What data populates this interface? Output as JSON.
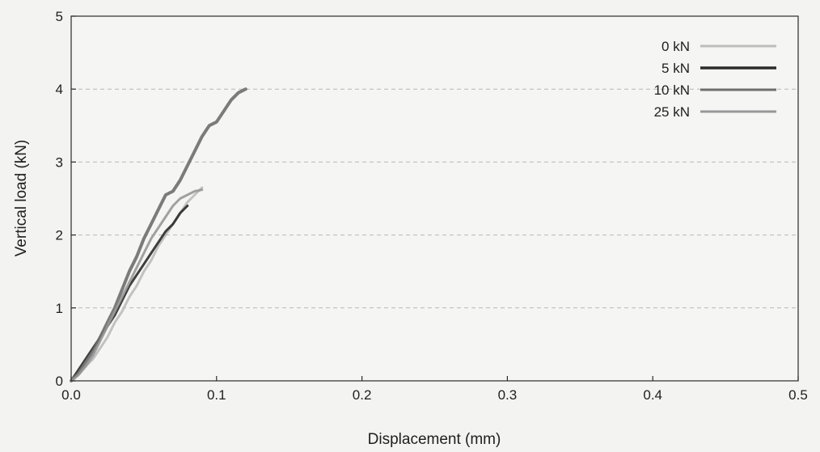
{
  "chart_data": {
    "type": "line",
    "title": "",
    "xlabel": "Displacement (mm)",
    "ylabel": "Vertical load (kN)",
    "xlim": [
      0,
      0.5
    ],
    "ylim": [
      0,
      5
    ],
    "x_ticks": [
      0.0,
      0.1,
      0.2,
      0.3,
      0.4,
      0.5
    ],
    "x_tick_labels": [
      "0.0",
      "0.1",
      "0.2",
      "0.3",
      "0.4",
      "0.5"
    ],
    "y_ticks": [
      0,
      1,
      2,
      3,
      4,
      5
    ],
    "y_tick_labels": [
      "0",
      "1",
      "2",
      "3",
      "4",
      "5"
    ],
    "grid": "horizontal dashed",
    "legend_position": "top-right",
    "series": [
      {
        "name": "0 kN",
        "color": "#bdbdbd",
        "x": [
          0.0,
          0.005,
          0.01,
          0.015,
          0.02,
          0.025,
          0.03,
          0.035,
          0.04,
          0.045,
          0.05,
          0.055,
          0.06,
          0.065,
          0.07,
          0.075,
          0.08,
          0.085,
          0.09
        ],
        "y": [
          0.0,
          0.1,
          0.2,
          0.3,
          0.45,
          0.6,
          0.8,
          0.95,
          1.15,
          1.3,
          1.5,
          1.65,
          1.85,
          2.0,
          2.15,
          2.3,
          2.45,
          2.55,
          2.65
        ]
      },
      {
        "name": "5 kN",
        "color": "#2b2b2b",
        "x": [
          0.0,
          0.005,
          0.01,
          0.015,
          0.02,
          0.025,
          0.03,
          0.035,
          0.04,
          0.045,
          0.05,
          0.055,
          0.06,
          0.065,
          0.07,
          0.075,
          0.08
        ],
        "y": [
          0.0,
          0.15,
          0.3,
          0.45,
          0.6,
          0.75,
          0.9,
          1.1,
          1.3,
          1.45,
          1.6,
          1.75,
          1.9,
          2.05,
          2.15,
          2.3,
          2.4
        ]
      },
      {
        "name": "10 kN",
        "color": "#6e6e6e",
        "x": [
          0.0,
          0.005,
          0.01,
          0.015,
          0.02,
          0.025,
          0.03,
          0.035,
          0.04,
          0.045,
          0.05,
          0.055,
          0.06,
          0.065,
          0.07,
          0.075,
          0.08,
          0.085,
          0.09,
          0.095,
          0.1,
          0.105,
          0.11,
          0.115,
          0.12
        ],
        "y": [
          0.0,
          0.1,
          0.25,
          0.4,
          0.6,
          0.8,
          1.0,
          1.25,
          1.5,
          1.7,
          1.95,
          2.15,
          2.35,
          2.55,
          2.6,
          2.75,
          2.95,
          3.15,
          3.35,
          3.5,
          3.55,
          3.7,
          3.85,
          3.95,
          4.0
        ]
      },
      {
        "name": "25 kN",
        "color": "#989898",
        "x": [
          0.0,
          0.005,
          0.01,
          0.015,
          0.02,
          0.025,
          0.03,
          0.035,
          0.04,
          0.045,
          0.05,
          0.055,
          0.06,
          0.065,
          0.07,
          0.075,
          0.08,
          0.085,
          0.09
        ],
        "y": [
          0.0,
          0.08,
          0.2,
          0.35,
          0.55,
          0.75,
          0.95,
          1.15,
          1.35,
          1.55,
          1.75,
          1.95,
          2.1,
          2.25,
          2.4,
          2.5,
          2.55,
          2.6,
          2.62
        ]
      }
    ]
  }
}
